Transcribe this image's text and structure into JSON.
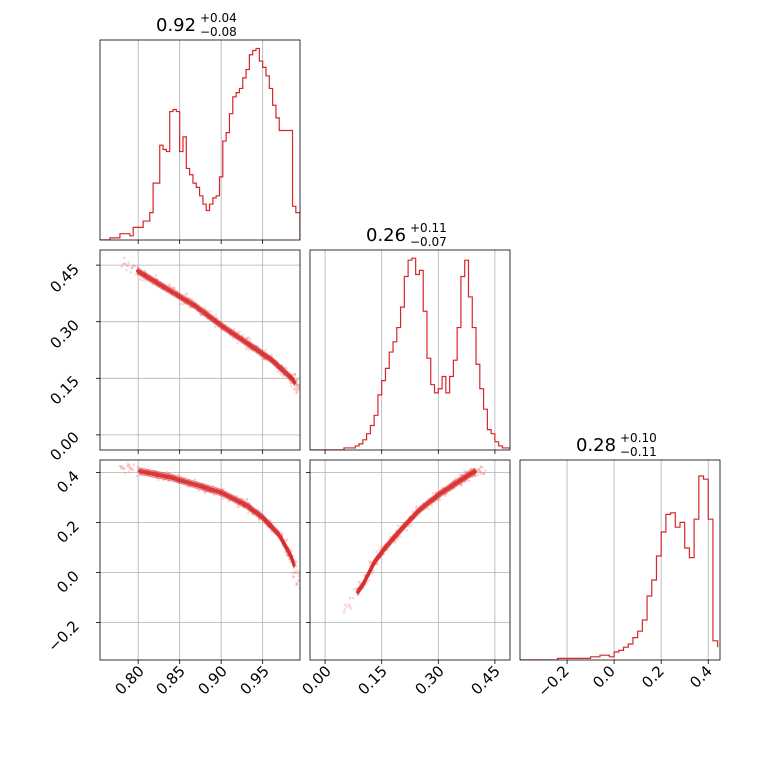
{
  "colors": {
    "series": "#d62728",
    "axes": "#000000",
    "grid": "#b0b0b0",
    "scatter": "#f08a8a"
  },
  "chart_data": [
    {
      "type": "histogram",
      "panel": "hist-0",
      "title": {
        "median": "0.92",
        "plus": "+0.04",
        "minus": "−0.08"
      },
      "xlim": [
        0.754,
        0.995
      ],
      "bins_x": [
        0.754,
        0.758,
        0.762,
        0.766,
        0.77,
        0.774,
        0.778,
        0.782,
        0.786,
        0.79,
        0.794,
        0.798,
        0.802,
        0.806,
        0.81,
        0.814,
        0.818,
        0.822,
        0.826,
        0.83,
        0.834,
        0.838,
        0.842,
        0.846,
        0.85,
        0.854,
        0.858,
        0.862,
        0.866,
        0.87,
        0.874,
        0.878,
        0.882,
        0.886,
        0.89,
        0.894,
        0.898,
        0.902,
        0.906,
        0.91,
        0.914,
        0.918,
        0.922,
        0.926,
        0.93,
        0.934,
        0.938,
        0.942,
        0.946,
        0.95,
        0.954,
        0.958,
        0.962,
        0.966,
        0.97,
        0.974,
        0.978,
        0.982,
        0.986,
        0.99,
        0.995
      ],
      "counts": [
        0,
        0,
        0,
        1,
        1,
        1,
        3,
        3,
        3,
        2,
        6,
        6,
        6,
        9,
        9,
        13,
        27,
        27,
        45,
        43,
        42,
        61,
        62,
        61,
        42,
        49,
        34,
        31,
        27,
        25,
        21,
        17,
        14,
        17,
        20,
        21,
        30,
        47,
        51,
        60,
        68,
        70,
        72,
        77,
        81,
        88,
        90,
        91,
        85,
        82,
        78,
        72,
        64,
        58,
        52,
        52,
        52,
        52,
        16,
        13,
        0
      ],
      "ylim": [
        0,
        95
      ]
    },
    {
      "type": "scatter-contour",
      "panel": "corner-1-0",
      "xlim": [
        0.754,
        0.995
      ],
      "ylim": [
        -0.04,
        0.49
      ],
      "ridge_x": [
        0.78,
        0.81,
        0.84,
        0.87,
        0.9,
        0.93,
        0.96,
        0.985,
        0.995
      ],
      "ridge_y": [
        0.46,
        0.42,
        0.38,
        0.34,
        0.29,
        0.245,
        0.2,
        0.15,
        0.12
      ]
    },
    {
      "type": "histogram",
      "panel": "hist-1",
      "title": {
        "median": "0.26",
        "plus": "+0.11",
        "minus": "−0.07"
      },
      "xlim": [
        -0.04,
        0.49
      ],
      "bins_x": [
        -0.04,
        -0.03,
        -0.02,
        -0.01,
        0.0,
        0.01,
        0.02,
        0.03,
        0.04,
        0.05,
        0.06,
        0.07,
        0.08,
        0.09,
        0.1,
        0.11,
        0.12,
        0.13,
        0.14,
        0.15,
        0.16,
        0.17,
        0.18,
        0.19,
        0.2,
        0.21,
        0.22,
        0.23,
        0.24,
        0.25,
        0.26,
        0.27,
        0.28,
        0.29,
        0.3,
        0.31,
        0.32,
        0.33,
        0.34,
        0.35,
        0.36,
        0.37,
        0.38,
        0.39,
        0.4,
        0.41,
        0.42,
        0.43,
        0.44,
        0.45,
        0.46,
        0.47,
        0.48,
        0.49
      ],
      "counts": [
        0,
        0,
        0,
        0,
        0,
        0,
        0,
        0,
        0,
        1,
        1,
        1,
        2,
        3,
        5,
        8,
        12,
        17,
        27,
        34,
        40,
        48,
        53,
        60,
        70,
        85,
        93,
        94,
        86,
        88,
        68,
        45,
        32,
        28,
        30,
        36,
        28,
        36,
        44,
        60,
        85,
        93,
        75,
        60,
        42,
        30,
        20,
        10,
        8,
        4,
        2,
        1,
        1
      ],
      "ylim": [
        0,
        98
      ]
    },
    {
      "type": "scatter-contour",
      "panel": "corner-2-0",
      "xlim": [
        0.754,
        0.995
      ],
      "ylim": [
        -0.35,
        0.45
      ],
      "ridge_x": [
        0.78,
        0.81,
        0.84,
        0.87,
        0.9,
        0.93,
        0.95,
        0.97,
        0.985,
        0.995
      ],
      "ridge_y": [
        0.42,
        0.4,
        0.38,
        0.35,
        0.32,
        0.27,
        0.22,
        0.15,
        0.06,
        -0.05
      ]
    },
    {
      "type": "scatter-contour",
      "panel": "corner-2-1",
      "xlim": [
        -0.04,
        0.49
      ],
      "ylim": [
        -0.35,
        0.45
      ],
      "ridge_x": [
        0.05,
        0.1,
        0.13,
        0.16,
        0.2,
        0.25,
        0.3,
        0.35,
        0.39,
        0.42
      ],
      "ridge_y": [
        -0.15,
        -0.05,
        0.04,
        0.1,
        0.17,
        0.25,
        0.31,
        0.36,
        0.4,
        0.41
      ]
    },
    {
      "type": "histogram",
      "panel": "hist-2",
      "title": {
        "median": "0.28",
        "plus": "+0.10",
        "minus": "−0.11"
      },
      "xlim": [
        -0.4,
        0.45
      ],
      "bins_x": [
        -0.4,
        -0.38,
        -0.36,
        -0.34,
        -0.32,
        -0.3,
        -0.28,
        -0.26,
        -0.24,
        -0.22,
        -0.2,
        -0.18,
        -0.16,
        -0.14,
        -0.12,
        -0.1,
        -0.08,
        -0.06,
        -0.04,
        -0.02,
        0.0,
        0.02,
        0.04,
        0.06,
        0.08,
        0.1,
        0.12,
        0.14,
        0.16,
        0.18,
        0.2,
        0.22,
        0.24,
        0.26,
        0.28,
        0.3,
        0.32,
        0.34,
        0.36,
        0.38,
        0.4,
        0.42,
        0.44
      ],
      "counts": [
        0,
        0,
        0,
        0,
        0,
        0,
        0,
        0,
        1,
        1,
        1,
        1,
        1,
        1,
        1,
        2,
        2,
        3,
        3,
        2,
        5,
        6,
        8,
        10,
        14,
        18,
        25,
        40,
        50,
        65,
        80,
        91,
        92,
        83,
        86,
        70,
        64,
        88,
        115,
        113,
        88,
        12,
        8
      ],
      "ylim": [
        0,
        125
      ]
    }
  ],
  "axes": {
    "row1_yticks": [
      "0.00",
      "0.15",
      "0.30",
      "0.45"
    ],
    "row2_yticks": [
      "−0.2",
      "0.0",
      "0.2",
      "0.4"
    ],
    "col0_xticks": [
      "0.80",
      "0.85",
      "0.90",
      "0.95"
    ],
    "col1_xticks": [
      "0.00",
      "0.15",
      "0.30",
      "0.45"
    ],
    "col2_xticks": [
      "−0.2",
      "0.0",
      "0.2",
      "0.4"
    ],
    "tick_values": {
      "row1_y": [
        0.0,
        0.15,
        0.3,
        0.45
      ],
      "row2_y": [
        -0.2,
        0.0,
        0.2,
        0.4
      ],
      "col0_x": [
        0.8,
        0.85,
        0.9,
        0.95
      ],
      "col1_x": [
        0.0,
        0.15,
        0.3,
        0.45
      ],
      "col2_x": [
        -0.2,
        0.0,
        0.2,
        0.4
      ]
    }
  }
}
